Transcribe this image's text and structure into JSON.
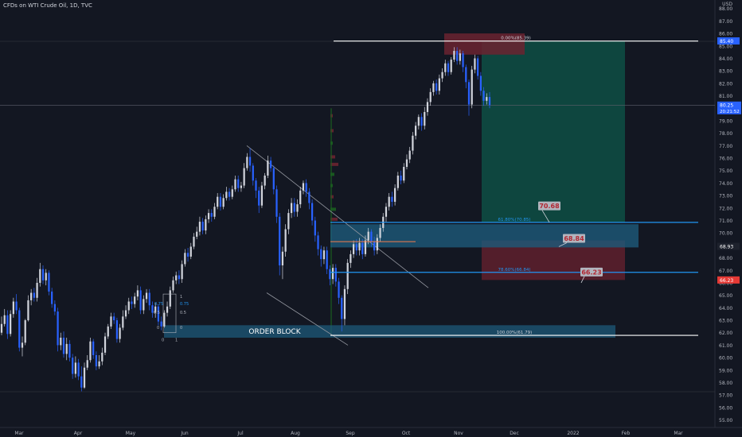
{
  "header": {
    "title": "CFDs on WTI Crude Oil, 1D, TVC",
    "currency": "USD"
  },
  "colors": {
    "background": "#131722",
    "up": "#d1d4dc",
    "down": "#2962ff",
    "fib": "#ffffff",
    "blue_line": "#2196f3",
    "zone": "#1e5a7a",
    "target": "#0e4f44",
    "stop": "#5b1f2c",
    "price_tag": "#2962ff",
    "stop_tag": "#e53935"
  },
  "chart_data": {
    "type": "candlestick",
    "ylim": [
      54.5,
      89.0
    ],
    "y_ticks": [
      55,
      56,
      57,
      58,
      59,
      60,
      61,
      62,
      63,
      64,
      65,
      66,
      67,
      68,
      69,
      70,
      71,
      72,
      73,
      74,
      75,
      76,
      77,
      78,
      79,
      80,
      81,
      82,
      83,
      84,
      85,
      86,
      87,
      88
    ],
    "x_ticks": [
      "Mar",
      "Apr",
      "May",
      "Jun",
      "Jul",
      "Aug",
      "Sep",
      "Oct",
      "Nov",
      "Dec",
      "2022",
      "Feb",
      "Mar"
    ],
    "last_price": "80.25",
    "countdown": "20:21:52",
    "price_tags": [
      {
        "label": "85.40",
        "value": 85.4,
        "color": "#2962ff"
      },
      {
        "label": "68.93",
        "value": 68.93,
        "color": "#1e222d"
      },
      {
        "label": "66.23",
        "value": 66.23,
        "color": "#e53935"
      }
    ],
    "fib_levels": [
      {
        "label": "0.00%(85.39)",
        "value": 85.39
      },
      {
        "label": "61.80%(70.85)",
        "value": 70.85
      },
      {
        "label": "78.60%(66.84)",
        "value": 66.84
      },
      {
        "label": "100.00%(61.79)",
        "value": 61.79
      }
    ],
    "level_boxes": [
      {
        "label": "70.68",
        "value": 70.68
      },
      {
        "label": "68.84",
        "value": 68.84
      },
      {
        "label": "66.23",
        "value": 66.23
      }
    ],
    "order_block": {
      "label": "ORDER BLOCK",
      "top": 62.6,
      "bottom": 61.6
    },
    "fib_mini_labels": [
      "1",
      "0.75",
      "0.75",
      "0.5",
      "0.5",
      "0",
      "0",
      "0",
      "1"
    ],
    "candles": [
      [
        62.0,
        62.7,
        61.8,
        63.3
      ],
      [
        62.7,
        63.4,
        62.5,
        63.9
      ],
      [
        63.4,
        61.9,
        61.5,
        63.8
      ],
      [
        61.9,
        63.5,
        61.7,
        63.8
      ],
      [
        63.5,
        64.5,
        63.2,
        64.8
      ],
      [
        64.5,
        63.8,
        63.5,
        65.1
      ],
      [
        63.8,
        60.8,
        60.5,
        64.0
      ],
      [
        60.8,
        61.2,
        60.1,
        61.7
      ],
      [
        61.2,
        63.0,
        61.0,
        63.1
      ],
      [
        63.0,
        64.6,
        62.9,
        65.0
      ],
      [
        64.6,
        65.2,
        64.2,
        65.5
      ],
      [
        65.2,
        64.8,
        64.5,
        65.6
      ],
      [
        64.8,
        66.0,
        64.5,
        66.4
      ],
      [
        66.0,
        67.1,
        65.7,
        67.6
      ],
      [
        67.1,
        66.2,
        65.9,
        67.4
      ],
      [
        66.2,
        66.8,
        65.8,
        67.1
      ],
      [
        66.8,
        65.3,
        65.0,
        67.0
      ],
      [
        65.3,
        64.3,
        64.0,
        65.6
      ],
      [
        64.3,
        63.7,
        63.4,
        64.6
      ],
      [
        63.7,
        61.0,
        60.5,
        64.0
      ],
      [
        61.0,
        61.6,
        60.6,
        62.0
      ],
      [
        61.6,
        60.3,
        60.0,
        62.1
      ],
      [
        60.3,
        61.1,
        59.8,
        61.6
      ],
      [
        61.1,
        60.0,
        59.7,
        61.4
      ],
      [
        60.0,
        58.7,
        58.3,
        60.3
      ],
      [
        58.7,
        59.6,
        58.4,
        60.1
      ],
      [
        59.6,
        58.5,
        58.2,
        59.9
      ],
      [
        58.5,
        57.6,
        57.3,
        59.3
      ],
      [
        57.6,
        59.2,
        57.5,
        59.6
      ],
      [
        59.2,
        59.8,
        59.0,
        60.2
      ],
      [
        59.8,
        61.3,
        59.6,
        61.6
      ],
      [
        61.3,
        60.2,
        59.9,
        61.5
      ],
      [
        60.2,
        59.3,
        59.0,
        60.5
      ],
      [
        59.3,
        59.7,
        59.1,
        60.2
      ],
      [
        59.7,
        60.4,
        59.4,
        60.8
      ],
      [
        60.4,
        61.7,
        60.2,
        62.0
      ],
      [
        61.7,
        62.5,
        61.5,
        62.7
      ],
      [
        62.5,
        63.3,
        62.3,
        63.6
      ],
      [
        63.3,
        63.0,
        62.7,
        63.6
      ],
      [
        63.0,
        61.5,
        61.2,
        63.2
      ],
      [
        61.5,
        62.4,
        61.2,
        62.7
      ],
      [
        62.4,
        63.3,
        62.2,
        63.8
      ],
      [
        63.3,
        63.8,
        63.1,
        64.2
      ],
      [
        63.8,
        64.5,
        63.5,
        64.8
      ],
      [
        64.5,
        64.3,
        63.9,
        64.9
      ],
      [
        64.3,
        64.9,
        64.0,
        65.2
      ],
      [
        64.9,
        65.4,
        64.6,
        65.8
      ],
      [
        65.4,
        63.8,
        63.5,
        65.7
      ],
      [
        63.8,
        64.7,
        63.5,
        65.0
      ],
      [
        64.7,
        65.2,
        64.4,
        65.5
      ],
      [
        65.2,
        64.2,
        63.8,
        65.5
      ],
      [
        64.2,
        63.6,
        63.2,
        64.5
      ],
      [
        63.6,
        64.1,
        63.2,
        64.4
      ],
      [
        64.1,
        62.9,
        62.6,
        64.3
      ],
      [
        62.9,
        62.5,
        62.2,
        63.3
      ],
      [
        62.5,
        63.6,
        62.4,
        63.8
      ],
      [
        63.6,
        64.1,
        63.3,
        64.5
      ],
      [
        64.1,
        65.4,
        63.9,
        65.7
      ],
      [
        65.4,
        66.2,
        65.2,
        66.5
      ],
      [
        66.2,
        66.6,
        65.9,
        66.9
      ],
      [
        66.6,
        66.3,
        65.9,
        67.0
      ],
      [
        66.3,
        67.5,
        66.0,
        67.8
      ],
      [
        67.5,
        68.4,
        67.3,
        68.7
      ],
      [
        68.4,
        68.1,
        67.7,
        68.8
      ],
      [
        68.1,
        68.9,
        67.9,
        69.2
      ],
      [
        68.9,
        69.7,
        68.7,
        70.0
      ],
      [
        69.7,
        70.1,
        69.5,
        70.5
      ],
      [
        70.1,
        70.9,
        69.8,
        71.3
      ],
      [
        70.9,
        70.2,
        69.9,
        71.2
      ],
      [
        70.2,
        71.1,
        69.9,
        71.4
      ],
      [
        71.1,
        71.6,
        70.8,
        71.9
      ],
      [
        71.6,
        71.3,
        70.9,
        71.9
      ],
      [
        71.3,
        72.1,
        71.1,
        72.4
      ],
      [
        72.1,
        72.9,
        71.9,
        73.2
      ],
      [
        72.9,
        72.1,
        71.8,
        73.2
      ],
      [
        72.1,
        72.8,
        71.9,
        73.1
      ],
      [
        72.8,
        73.3,
        72.6,
        73.7
      ],
      [
        73.3,
        72.9,
        72.6,
        73.6
      ],
      [
        72.9,
        73.5,
        72.7,
        73.8
      ],
      [
        73.5,
        74.3,
        73.3,
        74.6
      ],
      [
        74.3,
        73.6,
        73.3,
        74.6
      ],
      [
        73.6,
        73.8,
        73.3,
        74.1
      ],
      [
        73.8,
        75.2,
        73.6,
        75.6
      ],
      [
        75.2,
        76.1,
        75.0,
        76.4
      ],
      [
        76.1,
        75.4,
        74.9,
        76.8
      ],
      [
        75.4,
        74.2,
        73.8,
        75.6
      ],
      [
        74.2,
        73.4,
        72.8,
        74.4
      ],
      [
        73.4,
        72.2,
        71.6,
        73.7
      ],
      [
        72.2,
        73.8,
        72.0,
        74.1
      ],
      [
        73.8,
        74.6,
        73.5,
        74.8
      ],
      [
        74.6,
        75.8,
        74.4,
        76.2
      ],
      [
        75.8,
        75.2,
        74.9,
        76.1
      ],
      [
        75.2,
        73.5,
        73.1,
        75.4
      ],
      [
        73.5,
        71.3,
        70.8,
        73.8
      ],
      [
        71.3,
        67.4,
        66.6,
        71.6
      ],
      [
        67.4,
        68.5,
        66.3,
        68.9
      ],
      [
        68.5,
        70.3,
        68.1,
        70.7
      ],
      [
        70.3,
        71.6,
        69.9,
        71.9
      ],
      [
        71.6,
        72.4,
        71.2,
        72.8
      ],
      [
        72.4,
        71.7,
        71.3,
        72.8
      ],
      [
        71.7,
        72.3,
        71.3,
        72.7
      ],
      [
        72.3,
        73.4,
        72.0,
        73.7
      ],
      [
        73.4,
        74.0,
        73.1,
        74.2
      ],
      [
        74.0,
        73.3,
        72.9,
        74.3
      ],
      [
        73.3,
        72.4,
        71.9,
        73.6
      ],
      [
        72.4,
        71.0,
        70.6,
        72.7
      ],
      [
        71.0,
        69.8,
        69.3,
        71.3
      ],
      [
        69.8,
        68.7,
        68.2,
        70.1
      ],
      [
        68.7,
        67.9,
        67.3,
        69.0
      ],
      [
        67.9,
        68.6,
        67.5,
        68.9
      ],
      [
        68.6,
        67.1,
        66.7,
        68.9
      ],
      [
        67.1,
        66.3,
        65.8,
        67.4
      ],
      [
        66.3,
        67.2,
        65.9,
        67.5
      ],
      [
        67.2,
        66.1,
        65.7,
        67.5
      ],
      [
        66.1,
        64.8,
        64.3,
        66.4
      ],
      [
        64.8,
        63.1,
        62.1,
        65.0
      ],
      [
        63.1,
        65.5,
        62.6,
        65.8
      ],
      [
        65.5,
        67.6,
        65.1,
        67.9
      ],
      [
        67.6,
        68.3,
        67.2,
        68.6
      ],
      [
        68.3,
        69.1,
        68.0,
        69.4
      ],
      [
        69.1,
        68.6,
        68.2,
        69.5
      ],
      [
        68.6,
        69.2,
        68.2,
        69.6
      ],
      [
        69.2,
        68.3,
        67.9,
        69.5
      ],
      [
        68.3,
        69.4,
        68.1,
        69.8
      ],
      [
        69.4,
        70.1,
        69.1,
        70.4
      ],
      [
        70.1,
        69.3,
        68.9,
        70.3
      ],
      [
        69.3,
        68.6,
        68.2,
        69.7
      ],
      [
        68.6,
        69.6,
        68.3,
        69.9
      ],
      [
        69.6,
        70.4,
        69.3,
        70.7
      ],
      [
        70.4,
        71.3,
        70.1,
        71.6
      ],
      [
        71.3,
        72.1,
        70.9,
        72.4
      ],
      [
        72.1,
        72.9,
        71.8,
        73.2
      ],
      [
        72.9,
        72.5,
        72.1,
        73.3
      ],
      [
        72.5,
        73.6,
        72.2,
        73.9
      ],
      [
        73.6,
        74.6,
        73.4,
        74.9
      ],
      [
        74.6,
        74.2,
        73.9,
        75.0
      ],
      [
        74.2,
        75.3,
        74.0,
        75.6
      ],
      [
        75.3,
        75.9,
        75.1,
        76.3
      ],
      [
        75.9,
        76.6,
        75.6,
        76.9
      ],
      [
        76.6,
        77.8,
        76.3,
        78.1
      ],
      [
        77.8,
        78.6,
        77.5,
        78.9
      ],
      [
        78.6,
        79.3,
        78.3,
        79.5
      ],
      [
        79.3,
        78.6,
        78.2,
        79.6
      ],
      [
        78.6,
        79.7,
        78.3,
        80.1
      ],
      [
        79.7,
        80.5,
        79.4,
        80.8
      ],
      [
        80.5,
        81.3,
        80.2,
        81.6
      ],
      [
        81.3,
        82.0,
        81.0,
        82.2
      ],
      [
        82.0,
        81.4,
        81.1,
        82.3
      ],
      [
        81.4,
        82.4,
        81.1,
        82.7
      ],
      [
        82.4,
        82.9,
        82.1,
        83.2
      ],
      [
        82.9,
        83.6,
        82.6,
        83.9
      ],
      [
        83.6,
        82.9,
        82.6,
        83.8
      ],
      [
        82.9,
        83.9,
        82.7,
        84.1
      ],
      [
        83.9,
        84.6,
        83.7,
        84.9
      ],
      [
        84.6,
        83.8,
        83.5,
        84.9
      ],
      [
        83.8,
        84.4,
        83.5,
        84.7
      ],
      [
        84.4,
        83.3,
        82.9,
        84.6
      ],
      [
        83.3,
        82.1,
        81.6,
        83.5
      ],
      [
        82.1,
        80.3,
        79.4,
        82.3
      ],
      [
        80.3,
        83.1,
        80.0,
        83.4
      ],
      [
        83.1,
        84.0,
        82.8,
        84.3
      ],
      [
        84.0,
        82.6,
        82.3,
        84.2
      ],
      [
        82.6,
        81.4,
        81.0,
        82.9
      ],
      [
        81.4,
        80.6,
        80.2,
        81.7
      ],
      [
        80.6,
        80.9,
        80.3,
        81.2
      ],
      [
        80.9,
        80.25,
        80.0,
        81.3
      ]
    ]
  }
}
